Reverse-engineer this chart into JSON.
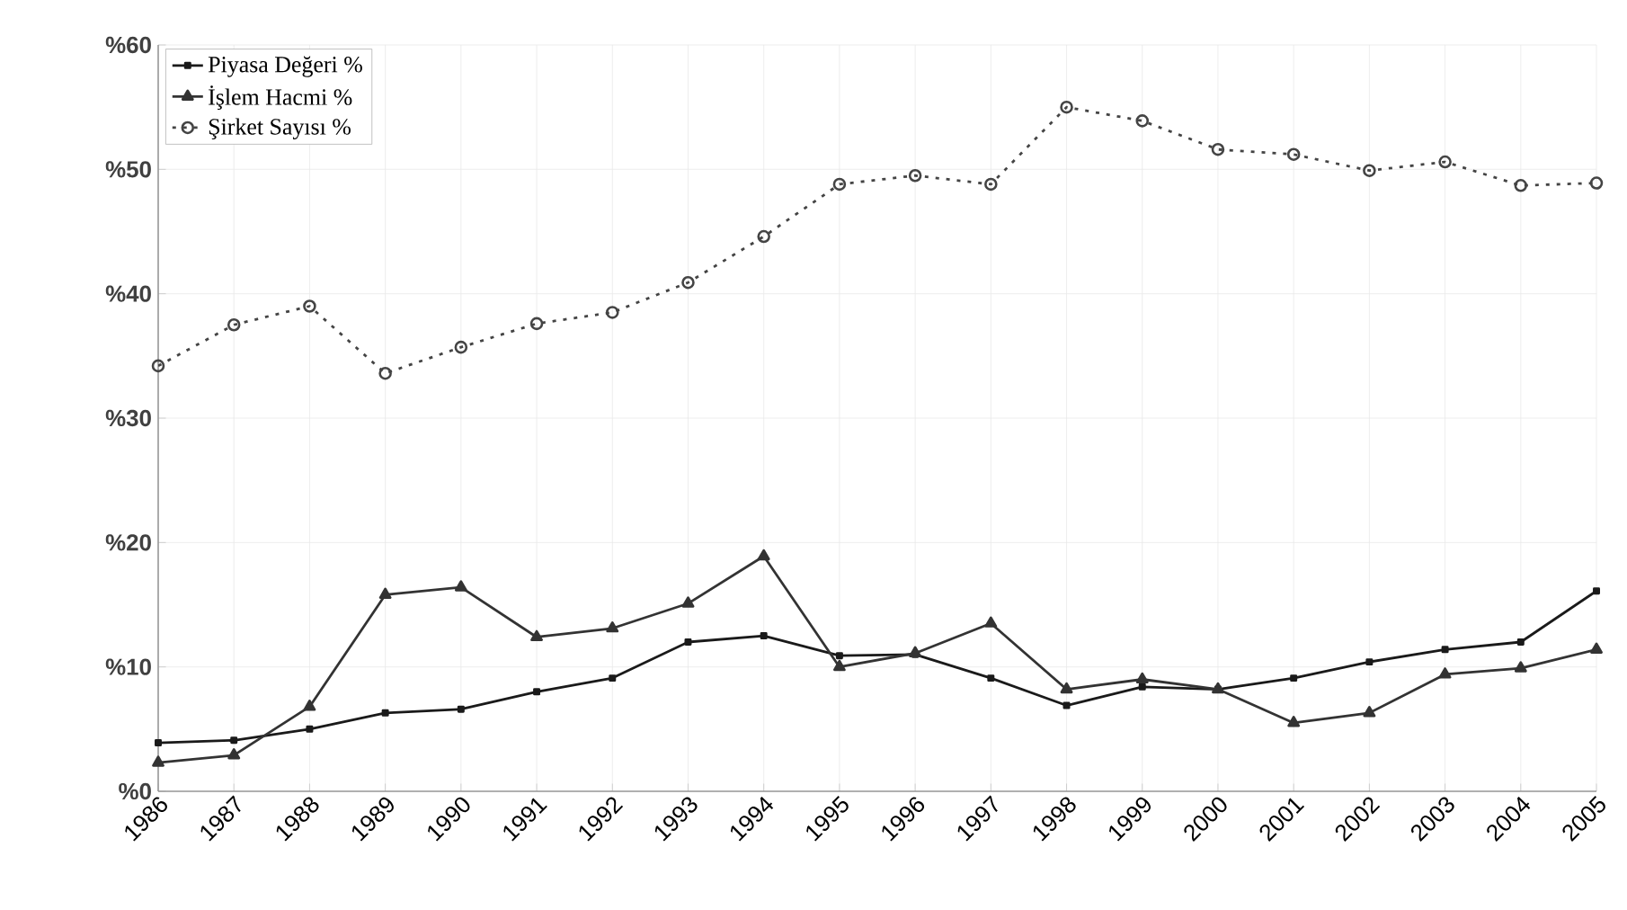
{
  "chart_data": {
    "type": "line",
    "categories": [
      "1986",
      "1987",
      "1988",
      "1989",
      "1990",
      "1991",
      "1992",
      "1993",
      "1994",
      "1995",
      "1996",
      "1997",
      "1998",
      "1999",
      "2000",
      "2001",
      "2002",
      "2003",
      "2004",
      "2005"
    ],
    "series": [
      {
        "name": "Piyasa Değeri %",
        "color": "#1a1a1a",
        "marker": "square",
        "line_style": "solid",
        "values": [
          3.9,
          4.1,
          5.0,
          6.3,
          6.6,
          8.0,
          9.1,
          12.0,
          12.5,
          10.9,
          11.0,
          9.1,
          6.9,
          8.4,
          8.2,
          9.1,
          10.4,
          11.4,
          12.0,
          16.1
        ]
      },
      {
        "name": "İşlem Hacmi %",
        "color": "#333333",
        "marker": "triangle",
        "line_style": "solid",
        "values": [
          2.3,
          2.9,
          6.8,
          15.8,
          16.4,
          12.4,
          13.1,
          15.1,
          18.9,
          10.0,
          11.1,
          13.5,
          8.2,
          9.0,
          8.2,
          5.5,
          6.3,
          9.4,
          9.9,
          11.4
        ]
      },
      {
        "name": "Şirket Sayısı %",
        "color": "#444444",
        "marker": "circle",
        "line_style": "dotted",
        "values": [
          34.2,
          37.5,
          39.0,
          33.6,
          35.7,
          37.6,
          38.5,
          40.9,
          44.6,
          48.8,
          49.5,
          48.8,
          55.0,
          53.9,
          51.6,
          51.2,
          49.9,
          50.6,
          48.7,
          48.9
        ]
      }
    ],
    "ylim": [
      0,
      60
    ],
    "yticks": [
      {
        "value": 0,
        "label": "%0"
      },
      {
        "value": 10,
        "label": "%10"
      },
      {
        "value": 20,
        "label": "%20"
      },
      {
        "value": 30,
        "label": "%30"
      },
      {
        "value": 40,
        "label": "%40"
      },
      {
        "value": 50,
        "label": "%50"
      },
      {
        "value": 60,
        "label": "%60"
      }
    ],
    "grid": true,
    "legend": "top left"
  }
}
